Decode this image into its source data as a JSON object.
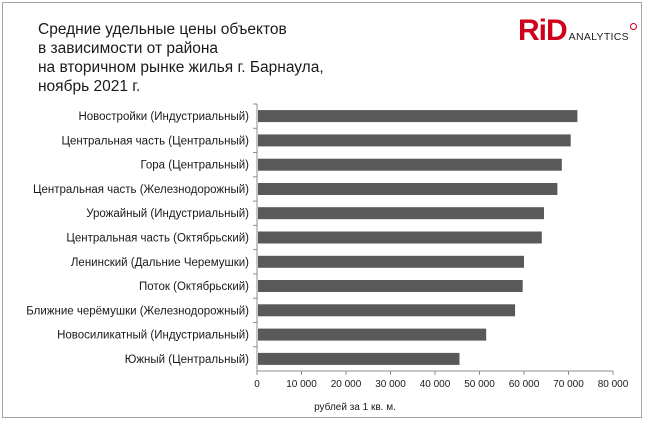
{
  "title_lines": [
    "Средние удельные цены объектов",
    "в зависимости от района",
    "на вторичном рынке жилья г. Барнаула,",
    "ноябрь 2021 г."
  ],
  "logo": {
    "brand": "RiD",
    "sub": "ANALYTICS",
    "color": "#d0021b"
  },
  "chart_data": {
    "type": "bar",
    "orientation": "horizontal",
    "title": "Средние удельные цены объектов в зависимости от района на вторичном рынке жилья г. Барнаула, ноябрь 2021 г.",
    "categories": [
      "Новостройки (Индустриальный)",
      "Центральная часть (Центральный)",
      "Гора (Центральный)",
      "Центральная часть (Железнодорожный)",
      "Урожайный (Индустриальный)",
      "Центральная часть (Октябрьский)",
      "Ленинский (Дальние Черемушки)",
      "Поток (Октябрьский)",
      "Ближние черёмушки (Железнодорожный)",
      "Новосиликатный (Индустриальный)",
      "Южный (Центральный)"
    ],
    "values": [
      72000,
      70500,
      68500,
      67500,
      64500,
      64000,
      60000,
      59700,
      58000,
      51500,
      45500
    ],
    "xlabel": "рублей за 1 кв. м.",
    "ylabel": "",
    "xlim": [
      0,
      80000
    ],
    "xticks": [
      0,
      10000,
      20000,
      30000,
      40000,
      50000,
      60000,
      70000,
      80000
    ],
    "xtick_labels": [
      "0",
      "10 000",
      "20 000",
      "30 000",
      "40 000",
      "50 000",
      "60 000",
      "70 000",
      "80 000"
    ],
    "grid": false,
    "bar_color": "#595959"
  }
}
